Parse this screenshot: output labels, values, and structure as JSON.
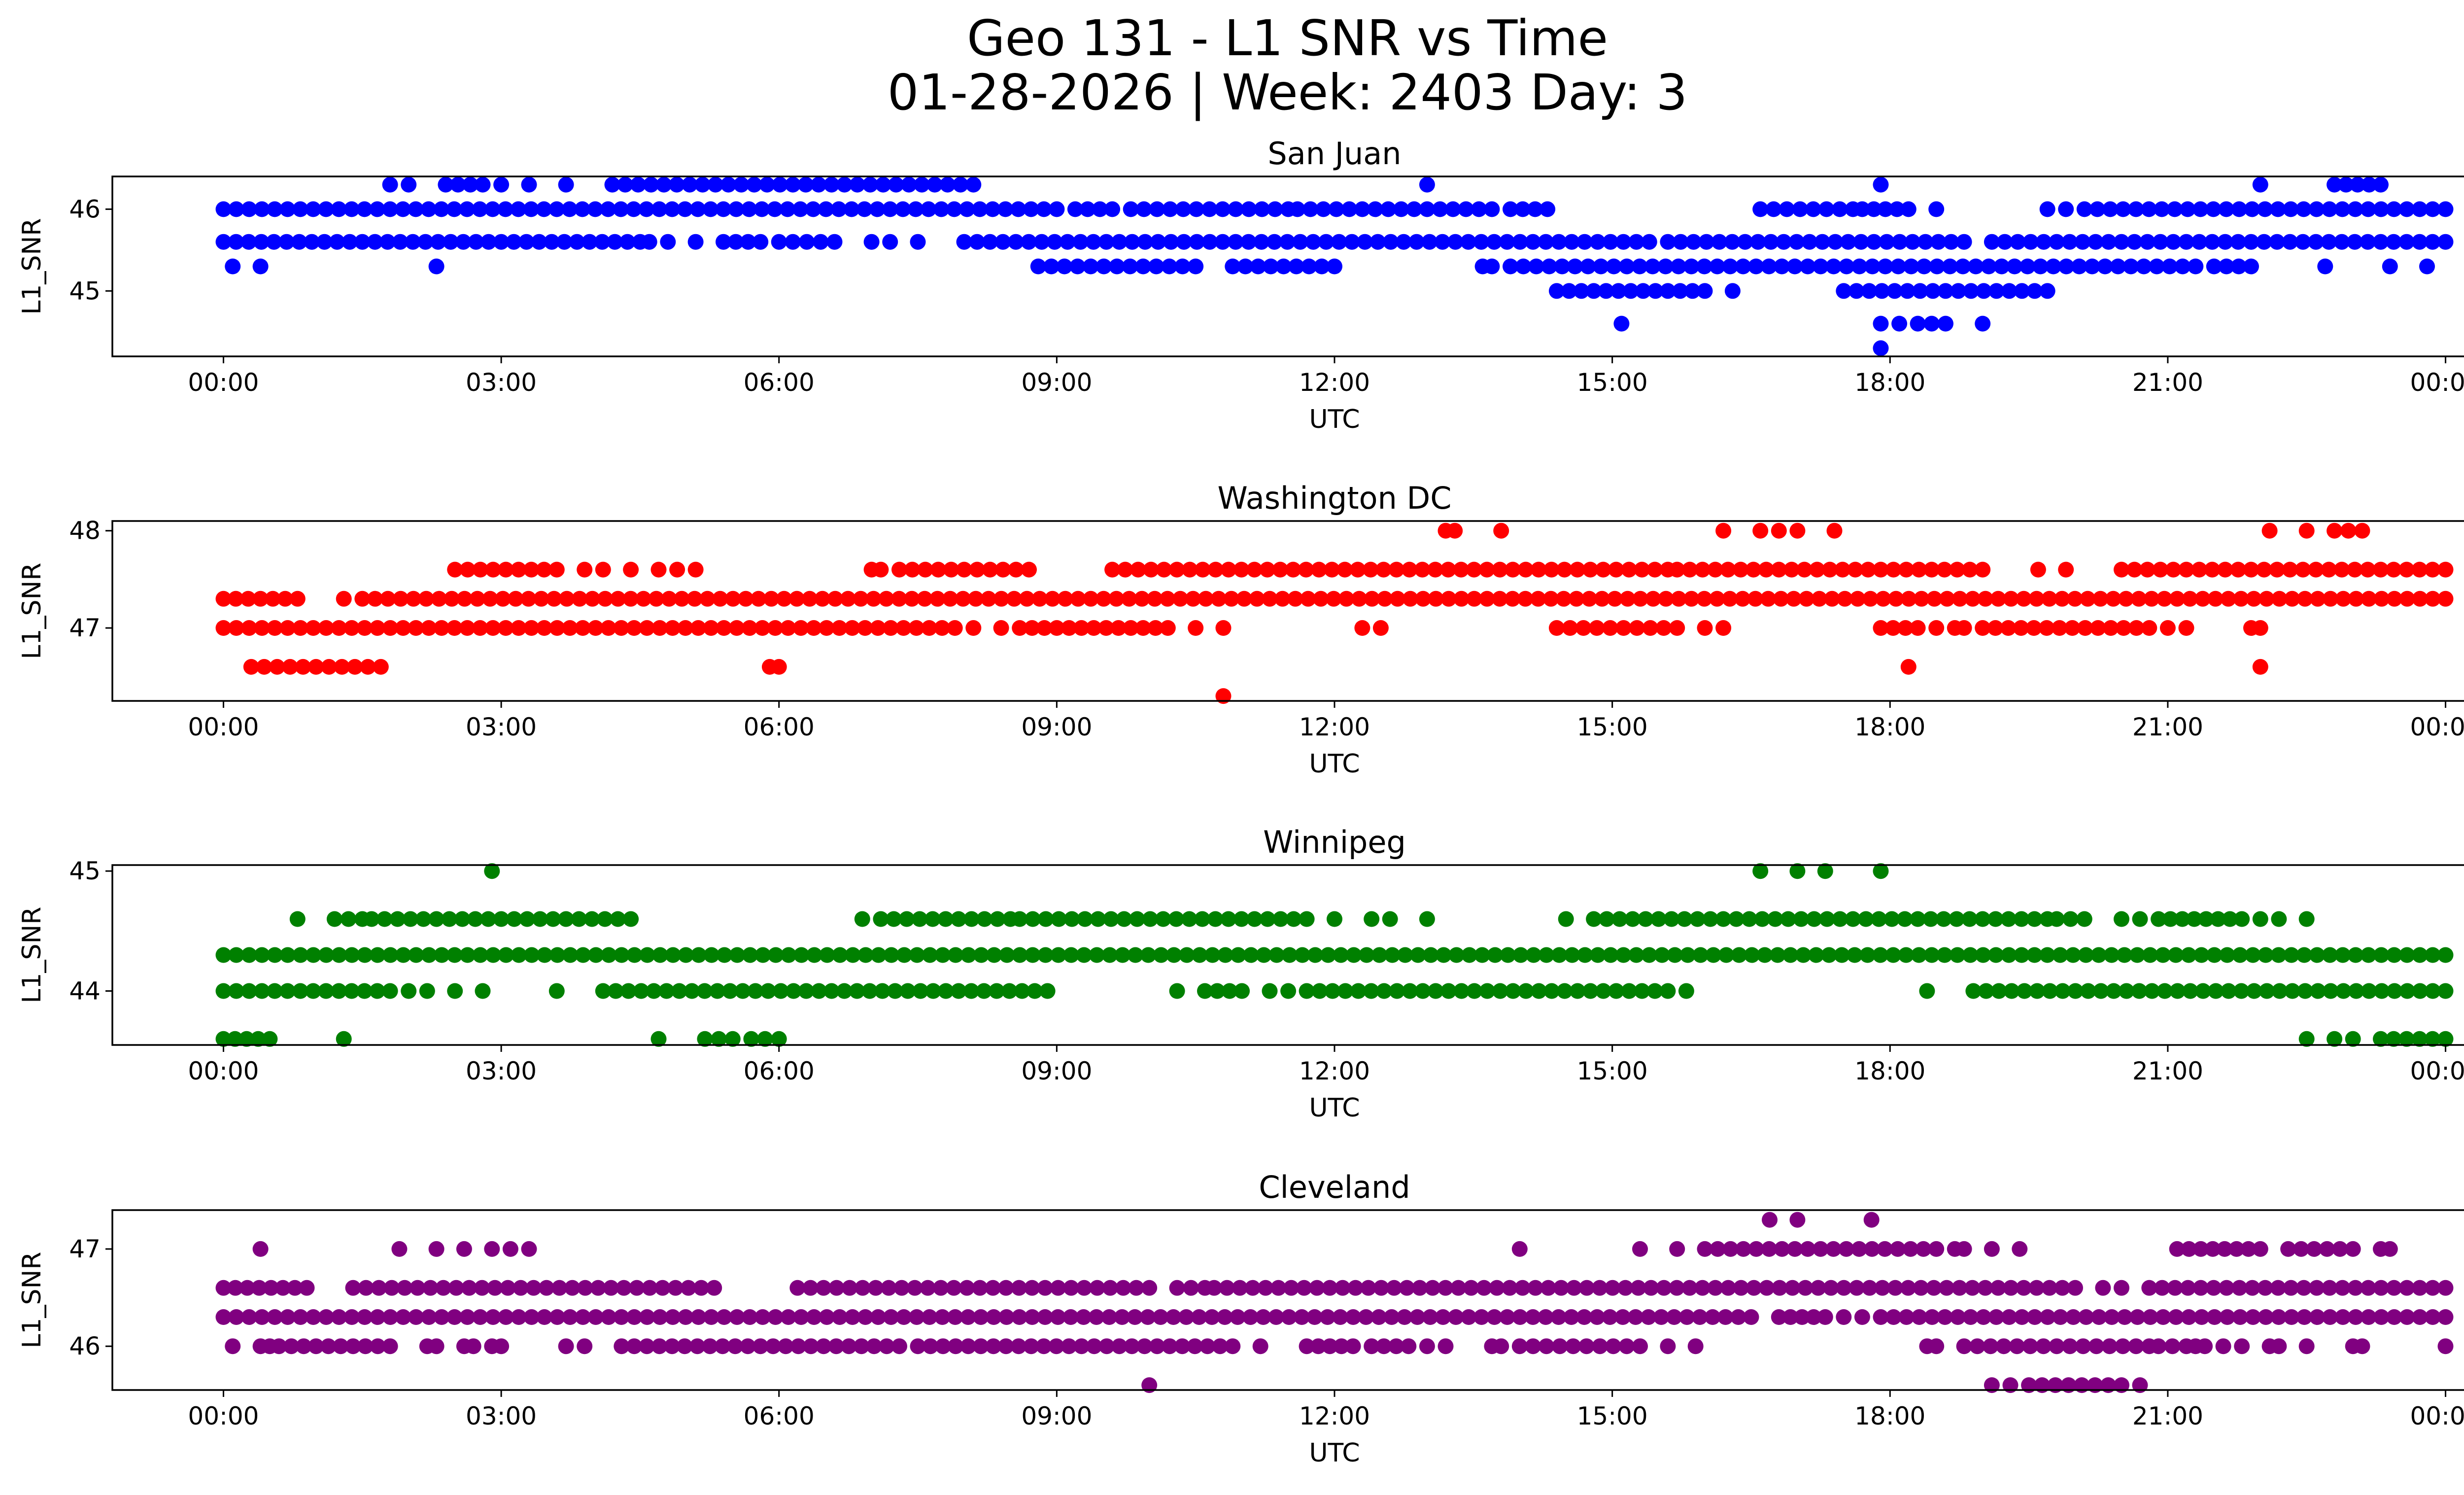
{
  "figure_title": "Geo 131 - L1 SNR vs Time",
  "figure_subtitle": "01-28-2026 | Week: 2403 Day: 3",
  "chart_data": [
    {
      "type": "scatter",
      "title": "San Juan",
      "xlabel": "UTC",
      "ylabel": "L1_SNR",
      "color": "#0000ff",
      "xticks": [
        "00:00",
        "03:00",
        "06:00",
        "09:00",
        "12:00",
        "15:00",
        "18:00",
        "21:00",
        "00:00"
      ],
      "yticks": [
        45,
        46
      ],
      "xlim_hours": [
        -1.2,
        25.2
      ],
      "ylim": [
        44.2,
        46.4
      ],
      "level_segments": [
        {
          "y": 46.3,
          "segments": [
            [
              1.8,
              1.8
            ],
            [
              2.0,
              2.0
            ],
            [
              2.4,
              2.8
            ],
            [
              3.0,
              3.0
            ],
            [
              3.3,
              3.3
            ],
            [
              3.7,
              3.7
            ],
            [
              4.2,
              8.1
            ],
            [
              13.0,
              13.0
            ],
            [
              17.9,
              17.9
            ],
            [
              22.0,
              22.0
            ],
            [
              22.8,
              23.3
            ]
          ]
        },
        {
          "y": 46.0,
          "segments": [
            [
              0.0,
              9.0
            ],
            [
              9.2,
              9.6
            ],
            [
              9.8,
              11.5
            ],
            [
              11.6,
              13.7
            ],
            [
              13.9,
              14.3
            ],
            [
              16.6,
              17.6
            ],
            [
              17.7,
              18.2
            ],
            [
              18.5,
              18.5
            ],
            [
              19.7,
              19.9
            ],
            [
              20.1,
              24.0
            ]
          ]
        },
        {
          "y": 45.6,
          "segments": [
            [
              0.0,
              4.5
            ],
            [
              4.6,
              4.8
            ],
            [
              5.1,
              5.1
            ],
            [
              5.4,
              5.8
            ],
            [
              6.0,
              6.6
            ],
            [
              7.0,
              7.2
            ],
            [
              7.5,
              7.5
            ],
            [
              8.0,
              15.4
            ],
            [
              15.6,
              18.8
            ],
            [
              19.1,
              24.0
            ]
          ]
        },
        {
          "y": 45.3,
          "segments": [
            [
              0.1,
              0.1
            ],
            [
              0.4,
              0.4
            ],
            [
              2.3,
              2.3
            ],
            [
              8.8,
              10.5
            ],
            [
              10.9,
              12.0
            ],
            [
              13.6,
              13.7
            ],
            [
              13.9,
              21.3
            ],
            [
              21.5,
              21.9
            ],
            [
              22.7,
              22.7
            ],
            [
              23.4,
              23.4
            ],
            [
              23.8,
              23.8
            ]
          ]
        },
        {
          "y": 45.0,
          "segments": [
            [
              14.4,
              16.0
            ],
            [
              16.3,
              16.3
            ],
            [
              17.5,
              19.7
            ]
          ]
        },
        {
          "y": 44.6,
          "segments": [
            [
              15.1,
              15.1
            ],
            [
              17.9,
              18.1
            ],
            [
              18.3,
              18.6
            ],
            [
              19.0,
              19.0
            ]
          ]
        },
        {
          "y": 44.3,
          "segments": [
            [
              17.9,
              17.9
            ]
          ]
        }
      ]
    },
    {
      "type": "scatter",
      "title": "Washington DC",
      "xlabel": "UTC",
      "ylabel": "L1_SNR",
      "color": "#ff0000",
      "xticks": [
        "00:00",
        "03:00",
        "06:00",
        "09:00",
        "12:00",
        "15:00",
        "18:00",
        "21:00",
        "00:00"
      ],
      "yticks": [
        47,
        48
      ],
      "xlim_hours": [
        -1.2,
        25.2
      ],
      "ylim": [
        46.25,
        48.1
      ],
      "level_segments": [
        {
          "y": 48.0,
          "segments": [
            [
              13.2,
              13.3
            ],
            [
              13.8,
              13.8
            ],
            [
              16.2,
              16.2
            ],
            [
              16.6,
              16.8
            ],
            [
              17.0,
              17.0
            ],
            [
              17.4,
              17.4
            ],
            [
              22.1,
              22.1
            ],
            [
              22.5,
              22.5
            ],
            [
              22.8,
              23.1
            ]
          ]
        },
        {
          "y": 47.6,
          "segments": [
            [
              2.5,
              3.6
            ],
            [
              3.9,
              4.1
            ],
            [
              4.4,
              4.4
            ],
            [
              4.7,
              4.7
            ],
            [
              4.9,
              5.1
            ],
            [
              7.0,
              7.1
            ],
            [
              7.3,
              8.7
            ],
            [
              9.6,
              15.6
            ],
            [
              15.7,
              19.0
            ],
            [
              19.6,
              19.6
            ],
            [
              19.9,
              19.9
            ],
            [
              20.5,
              24.0
            ]
          ]
        },
        {
          "y": 47.3,
          "segments": [
            [
              0.0,
              0.8
            ],
            [
              1.3,
              1.3
            ],
            [
              1.5,
              24.0
            ]
          ]
        },
        {
          "y": 47.0,
          "segments": [
            [
              0.0,
              7.9
            ],
            [
              8.1,
              8.1
            ],
            [
              8.4,
              8.4
            ],
            [
              8.6,
              10.2
            ],
            [
              10.5,
              10.5
            ],
            [
              10.8,
              10.8
            ],
            [
              12.3,
              12.3
            ],
            [
              12.5,
              12.5
            ],
            [
              14.4,
              15.7
            ],
            [
              16.0,
              16.0
            ],
            [
              16.2,
              16.2
            ],
            [
              17.9,
              18.3
            ],
            [
              18.5,
              18.5
            ],
            [
              18.7,
              18.8
            ],
            [
              19.0,
              20.8
            ],
            [
              21.0,
              21.0
            ],
            [
              21.2,
              21.2
            ],
            [
              21.9,
              22.0
            ]
          ]
        },
        {
          "y": 46.6,
          "segments": [
            [
              0.3,
              1.7
            ],
            [
              5.9,
              6.0
            ],
            [
              18.2,
              18.2
            ],
            [
              22.0,
              22.0
            ]
          ]
        },
        {
          "y": 46.3,
          "segments": [
            [
              10.8,
              10.8
            ]
          ]
        }
      ]
    },
    {
      "type": "scatter",
      "title": "Winnipeg",
      "xlabel": "UTC",
      "ylabel": "L1_SNR",
      "color": "#008000",
      "xticks": [
        "00:00",
        "03:00",
        "06:00",
        "09:00",
        "12:00",
        "15:00",
        "18:00",
        "21:00",
        "00:00"
      ],
      "yticks": [
        44,
        45
      ],
      "xlim_hours": [
        -1.2,
        25.2
      ],
      "ylim": [
        43.55,
        45.05
      ],
      "level_segments": [
        {
          "y": 45.0,
          "segments": [
            [
              2.9,
              2.9
            ],
            [
              16.6,
              16.6
            ],
            [
              17.0,
              17.0
            ],
            [
              17.3,
              17.3
            ],
            [
              17.9,
              17.9
            ]
          ]
        },
        {
          "y": 44.6,
          "segments": [
            [
              0.8,
              0.8
            ],
            [
              1.2,
              1.5
            ],
            [
              1.6,
              4.4
            ],
            [
              6.9,
              6.9
            ],
            [
              7.1,
              8.5
            ],
            [
              8.6,
              11.7
            ],
            [
              12.0,
              12.0
            ],
            [
              12.4,
              12.6
            ],
            [
              13.0,
              13.0
            ],
            [
              14.5,
              14.5
            ],
            [
              14.8,
              19.7
            ],
            [
              19.8,
              20.1
            ],
            [
              20.5,
              20.7
            ],
            [
              20.9,
              21.8
            ],
            [
              22.0,
              22.2
            ],
            [
              22.5,
              22.5
            ]
          ]
        },
        {
          "y": 44.3,
          "segments": [
            [
              0.0,
              24.0
            ]
          ]
        },
        {
          "y": 44.0,
          "segments": [
            [
              0.0,
              1.8
            ],
            [
              2.0,
              2.2
            ],
            [
              2.5,
              2.5
            ],
            [
              2.8,
              2.8
            ],
            [
              3.6,
              3.6
            ],
            [
              4.1,
              8.9
            ],
            [
              10.3,
              10.3
            ],
            [
              10.6,
              11.0
            ],
            [
              11.3,
              11.5
            ],
            [
              11.7,
              15.6
            ],
            [
              15.8,
              15.8
            ],
            [
              18.4,
              18.4
            ],
            [
              18.9,
              24.0
            ]
          ]
        },
        {
          "y": 43.6,
          "segments": [
            [
              0.0,
              0.5
            ],
            [
              1.3,
              1.3
            ],
            [
              4.7,
              4.7
            ],
            [
              5.2,
              5.5
            ],
            [
              5.7,
              6.0
            ],
            [
              22.5,
              22.5
            ],
            [
              22.8,
              23.0
            ],
            [
              23.3,
              24.0
            ]
          ]
        }
      ]
    },
    {
      "type": "scatter",
      "title": "Cleveland",
      "xlabel": "UTC",
      "ylabel": "L1_SNR",
      "color": "#800080",
      "xticks": [
        "00:00",
        "03:00",
        "06:00",
        "09:00",
        "12:00",
        "15:00",
        "18:00",
        "21:00",
        "00:00"
      ],
      "yticks": [
        46,
        47
      ],
      "xlim_hours": [
        -1.2,
        25.2
      ],
      "ylim": [
        45.55,
        47.4
      ],
      "level_segments": [
        {
          "y": 47.3,
          "segments": [
            [
              16.7,
              16.7
            ],
            [
              17.0,
              17.0
            ],
            [
              17.8,
              17.8
            ]
          ]
        },
        {
          "y": 47.0,
          "segments": [
            [
              0.4,
              0.4
            ],
            [
              1.9,
              1.9
            ],
            [
              2.3,
              2.3
            ],
            [
              2.6,
              2.6
            ],
            [
              2.9,
              2.9
            ],
            [
              3.1,
              3.3
            ],
            [
              14.0,
              14.0
            ],
            [
              15.3,
              15.3
            ],
            [
              15.7,
              15.7
            ],
            [
              16.0,
              18.5
            ],
            [
              18.7,
              18.8
            ],
            [
              19.1,
              19.1
            ],
            [
              19.4,
              19.4
            ],
            [
              21.1,
              22.0
            ],
            [
              22.3,
              23.0
            ],
            [
              23.3,
              23.4
            ]
          ]
        },
        {
          "y": 46.6,
          "segments": [
            [
              0.0,
              0.9
            ],
            [
              1.4,
              5.3
            ],
            [
              6.2,
              10.0
            ],
            [
              10.3,
              10.6
            ],
            [
              10.7,
              20.0
            ],
            [
              20.3,
              20.5
            ],
            [
              20.8,
              24.0
            ]
          ]
        },
        {
          "y": 46.3,
          "segments": [
            [
              0.0,
              16.5
            ],
            [
              16.8,
              17.3
            ],
            [
              17.5,
              17.5
            ],
            [
              17.7,
              17.7
            ],
            [
              17.9,
              24.0
            ]
          ]
        },
        {
          "y": 46.0,
          "segments": [
            [
              0.1,
              0.1
            ],
            [
              0.4,
              0.5
            ],
            [
              0.6,
              1.8
            ],
            [
              2.2,
              2.3
            ],
            [
              2.6,
              2.7
            ],
            [
              2.9,
              3.0
            ],
            [
              3.7,
              3.9
            ],
            [
              4.3,
              7.3
            ],
            [
              7.5,
              10.9
            ],
            [
              11.2,
              11.2
            ],
            [
              11.7,
              12.2
            ],
            [
              12.4,
              12.8
            ],
            [
              13.0,
              13.2
            ],
            [
              13.7,
              13.8
            ],
            [
              14.0,
              15.3
            ],
            [
              15.6,
              15.6
            ],
            [
              15.9,
              15.9
            ],
            [
              18.4,
              18.5
            ],
            [
              18.8,
              20.8
            ],
            [
              20.9,
              21.2
            ],
            [
              21.3,
              21.4
            ],
            [
              21.6,
              21.8
            ],
            [
              22.1,
              22.2
            ],
            [
              22.5,
              22.5
            ],
            [
              23.0,
              23.1
            ],
            [
              24.0,
              24.0
            ]
          ]
        },
        {
          "y": 45.6,
          "segments": [
            [
              10.0,
              10.0
            ],
            [
              19.1,
              19.3
            ],
            [
              19.5,
              20.5
            ],
            [
              20.7,
              20.7
            ]
          ]
        }
      ]
    }
  ]
}
